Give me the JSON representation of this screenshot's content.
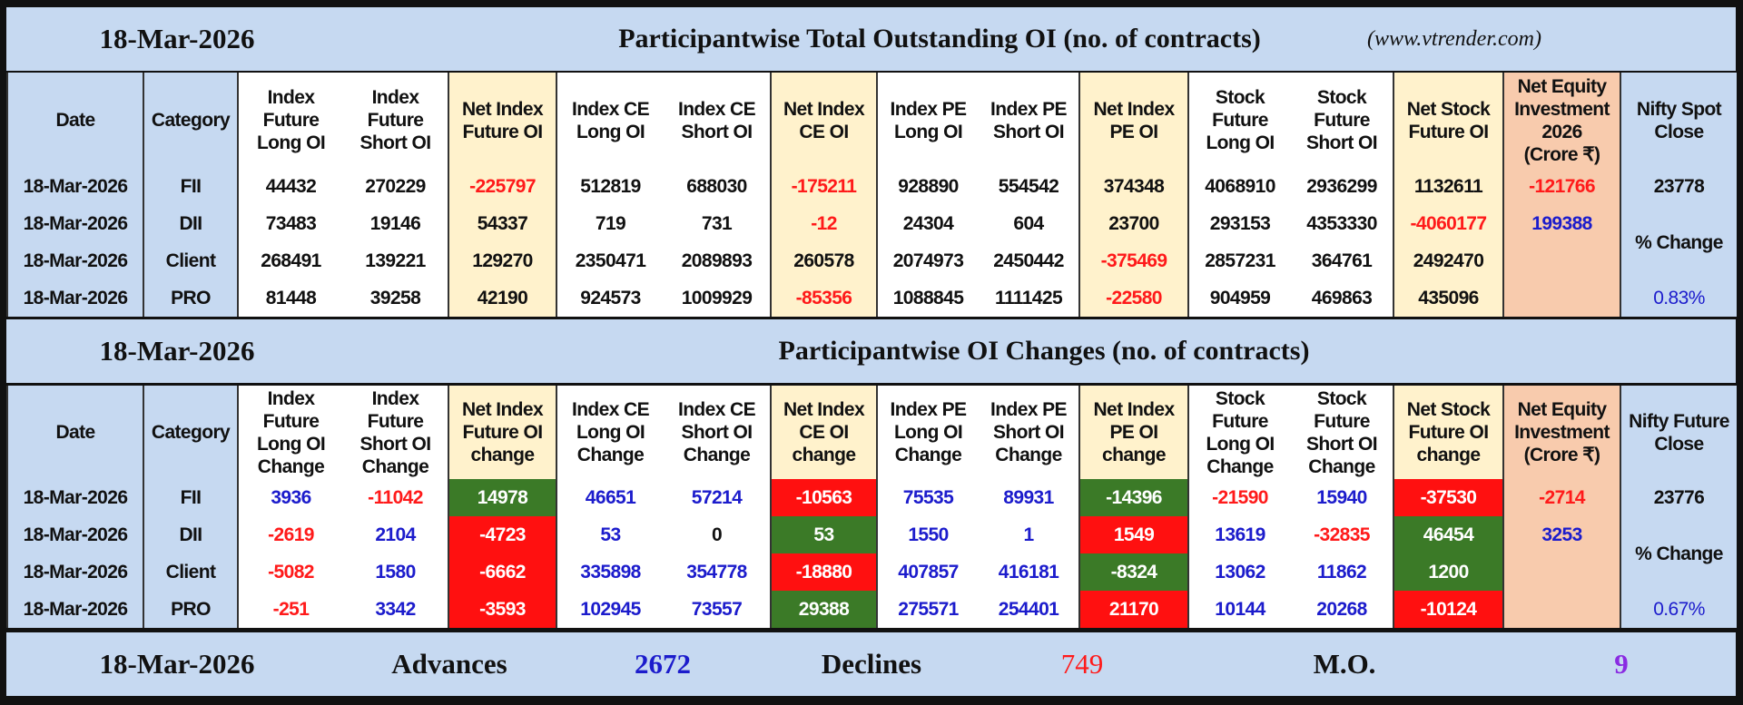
{
  "colors": {
    "band": "#c6d9f1",
    "net_column": "#fff2cc",
    "net_equity_column": "#f8cbad",
    "positive_fill": "#3b7a27",
    "negative_fill": "#ff1010",
    "negative_text": "#ff1a1a",
    "positive_text": "#1c1ccc",
    "mo_text": "#8a2be2"
  },
  "outstanding": {
    "date": "18-Mar-2026",
    "title": "Participantwise Total Outstanding OI (no. of contracts)",
    "site": "(www.vtrender.com)",
    "headers": [
      "Date",
      "Category",
      "Index\nFuture\nLong OI",
      "Index\nFuture\nShort OI",
      "Net Index\nFuture OI",
      "Index CE\nLong OI",
      "Index CE\nShort OI",
      "Net Index\nCE OI",
      "Index PE\nLong OI",
      "Index PE\nShort OI",
      "Net Index\nPE OI",
      "Stock\nFuture\nLong OI",
      "Stock\nFuture\nShort OI",
      "Net Stock\nFuture OI",
      "Net Equity\nInvestment\n2026\n(Crore ₹)",
      "Nifty Spot\nClose"
    ],
    "rows": [
      {
        "date": "18-Mar-2026",
        "category": "FII",
        "cells": [
          {
            "v": "44432"
          },
          {
            "v": "270229"
          },
          {
            "v": "-225797",
            "c": "red"
          },
          {
            "v": "512819"
          },
          {
            "v": "688030"
          },
          {
            "v": "-175211",
            "c": "red"
          },
          {
            "v": "928890"
          },
          {
            "v": "554542"
          },
          {
            "v": "374348"
          },
          {
            "v": "4068910"
          },
          {
            "v": "2936299"
          },
          {
            "v": "1132611"
          },
          {
            "v": "-121766",
            "c": "red"
          }
        ]
      },
      {
        "date": "18-Mar-2026",
        "category": "DII",
        "cells": [
          {
            "v": "73483"
          },
          {
            "v": "19146"
          },
          {
            "v": "54337"
          },
          {
            "v": "719"
          },
          {
            "v": "731"
          },
          {
            "v": "-12",
            "c": "red"
          },
          {
            "v": "24304"
          },
          {
            "v": "604"
          },
          {
            "v": "23700"
          },
          {
            "v": "293153"
          },
          {
            "v": "4353330"
          },
          {
            "v": "-4060177",
            "c": "red"
          },
          {
            "v": "199388",
            "c": "blue"
          }
        ]
      },
      {
        "date": "18-Mar-2026",
        "category": "Client",
        "cells": [
          {
            "v": "268491"
          },
          {
            "v": "139221"
          },
          {
            "v": "129270"
          },
          {
            "v": "2350471"
          },
          {
            "v": "2089893"
          },
          {
            "v": "260578"
          },
          {
            "v": "2074973"
          },
          {
            "v": "2450442"
          },
          {
            "v": "-375469",
            "c": "red"
          },
          {
            "v": "2857231"
          },
          {
            "v": "364761"
          },
          {
            "v": "2492470"
          },
          {
            "v": ""
          }
        ]
      },
      {
        "date": "18-Mar-2026",
        "category": "PRO",
        "cells": [
          {
            "v": "81448"
          },
          {
            "v": "39258"
          },
          {
            "v": "42190"
          },
          {
            "v": "924573"
          },
          {
            "v": "1009929"
          },
          {
            "v": "-85356",
            "c": "red"
          },
          {
            "v": "1088845"
          },
          {
            "v": "1111425"
          },
          {
            "v": "-22580",
            "c": "red"
          },
          {
            "v": "904959"
          },
          {
            "v": "469863"
          },
          {
            "v": "435096"
          },
          {
            "v": ""
          }
        ]
      }
    ],
    "nifty": {
      "close": "23778",
      "change_label": "% Change",
      "change": "0.83%"
    }
  },
  "changes": {
    "date": "18-Mar-2026",
    "title": "Participantwise OI Changes (no. of contracts)",
    "headers": [
      "Date",
      "Category",
      "Index\nFuture\nLong OI\nChange",
      "Index\nFuture\nShort OI\nChange",
      "Net Index\nFuture OI\nchange",
      "Index CE\nLong OI\nChange",
      "Index CE\nShort OI\nChange",
      "Net Index\nCE OI\nchange",
      "Index PE\nLong OI\nChange",
      "Index PE\nShort OI\nChange",
      "Net Index\nPE OI\nchange",
      "Stock\nFuture\nLong OI\nChange",
      "Stock\nFuture\nShort OI\nChange",
      "Net Stock\nFuture OI\nchange",
      "Net Equity\nInvestment\n(Crore ₹)",
      "Nifty Future\nClose"
    ],
    "rows": [
      {
        "date": "18-Mar-2026",
        "category": "FII",
        "cells": [
          {
            "v": "3936",
            "c": "blue"
          },
          {
            "v": "-11042",
            "c": "red"
          },
          {
            "v": "14978",
            "f": "green"
          },
          {
            "v": "46651",
            "c": "blue"
          },
          {
            "v": "57214",
            "c": "blue"
          },
          {
            "v": "-10563",
            "f": "red"
          },
          {
            "v": "75535",
            "c": "blue"
          },
          {
            "v": "89931",
            "c": "blue"
          },
          {
            "v": "-14396",
            "f": "green"
          },
          {
            "v": "-21590",
            "c": "red"
          },
          {
            "v": "15940",
            "c": "blue"
          },
          {
            "v": "-37530",
            "f": "red"
          },
          {
            "v": "-2714",
            "c": "red"
          }
        ]
      },
      {
        "date": "18-Mar-2026",
        "category": "DII",
        "cells": [
          {
            "v": "-2619",
            "c": "red"
          },
          {
            "v": "2104",
            "c": "blue"
          },
          {
            "v": "-4723",
            "f": "red"
          },
          {
            "v": "53",
            "c": "blue"
          },
          {
            "v": "0",
            "c": "black"
          },
          {
            "v": "53",
            "f": "green"
          },
          {
            "v": "1550",
            "c": "blue"
          },
          {
            "v": "1",
            "c": "blue"
          },
          {
            "v": "1549",
            "f": "red"
          },
          {
            "v": "13619",
            "c": "blue"
          },
          {
            "v": "-32835",
            "c": "red"
          },
          {
            "v": "46454",
            "f": "green"
          },
          {
            "v": "3253",
            "c": "blue"
          }
        ]
      },
      {
        "date": "18-Mar-2026",
        "category": "Client",
        "cells": [
          {
            "v": "-5082",
            "c": "red"
          },
          {
            "v": "1580",
            "c": "blue"
          },
          {
            "v": "-6662",
            "f": "red"
          },
          {
            "v": "335898",
            "c": "blue"
          },
          {
            "v": "354778",
            "c": "blue"
          },
          {
            "v": "-18880",
            "f": "red"
          },
          {
            "v": "407857",
            "c": "blue"
          },
          {
            "v": "416181",
            "c": "blue"
          },
          {
            "v": "-8324",
            "f": "green"
          },
          {
            "v": "13062",
            "c": "blue"
          },
          {
            "v": "11862",
            "c": "blue"
          },
          {
            "v": "1200",
            "f": "green"
          },
          {
            "v": ""
          }
        ]
      },
      {
        "date": "18-Mar-2026",
        "category": "PRO",
        "cells": [
          {
            "v": "-251",
            "c": "red"
          },
          {
            "v": "3342",
            "c": "blue"
          },
          {
            "v": "-3593",
            "f": "red"
          },
          {
            "v": "102945",
            "c": "blue"
          },
          {
            "v": "73557",
            "c": "blue"
          },
          {
            "v": "29388",
            "f": "green"
          },
          {
            "v": "275571",
            "c": "blue"
          },
          {
            "v": "254401",
            "c": "blue"
          },
          {
            "v": "21170",
            "f": "red"
          },
          {
            "v": "10144",
            "c": "blue"
          },
          {
            "v": "20268",
            "c": "blue"
          },
          {
            "v": "-10124",
            "f": "red"
          },
          {
            "v": ""
          }
        ]
      }
    ],
    "nifty": {
      "close": "23776",
      "change_label": "% Change",
      "change": "0.67%"
    }
  },
  "footer": {
    "date": "18-Mar-2026",
    "advances_label": "Advances",
    "advances": "2672",
    "declines_label": "Declines",
    "declines": "749",
    "mo_label": "M.O.",
    "mo": "9"
  }
}
